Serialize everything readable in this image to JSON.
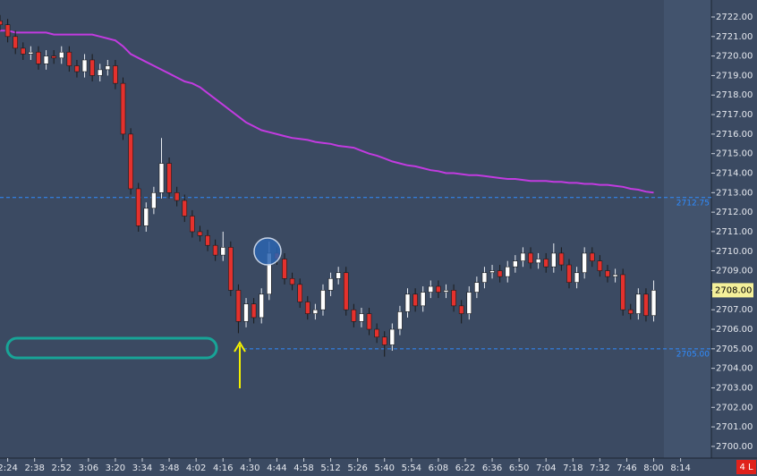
{
  "chart_data": {
    "type": "candlestick",
    "x": [
      "2:20",
      "2:24",
      "2:28",
      "2:32",
      "2:36",
      "2:40",
      "2:44",
      "2:48",
      "2:52",
      "2:56",
      "3:00",
      "3:04",
      "3:08",
      "3:12",
      "3:16",
      "3:20",
      "3:24",
      "3:28",
      "3:32",
      "3:36",
      "3:40",
      "3:44",
      "3:48",
      "3:52",
      "3:56",
      "4:00",
      "4:04",
      "4:08",
      "4:12",
      "4:16",
      "4:20",
      "4:24",
      "4:28",
      "4:32",
      "4:36",
      "4:40",
      "4:44",
      "4:48",
      "4:52",
      "4:56",
      "5:00",
      "5:04",
      "5:08",
      "5:12",
      "5:16",
      "5:20",
      "5:24",
      "5:28",
      "5:32",
      "5:36",
      "5:40",
      "5:44",
      "5:48",
      "5:52",
      "5:56",
      "6:00",
      "6:04",
      "6:08",
      "6:12",
      "6:16",
      "6:20",
      "6:24",
      "6:28",
      "6:32",
      "6:36",
      "6:40",
      "6:44",
      "6:48",
      "6:52",
      "6:56",
      "7:00",
      "7:04",
      "7:08",
      "7:12",
      "7:16",
      "7:20",
      "7:24",
      "7:28",
      "7:32",
      "7:36",
      "7:40",
      "7:44",
      "7:48",
      "7:52",
      "7:56",
      "8:00"
    ],
    "open": [
      2721.8,
      2721.6,
      2721.0,
      2720.4,
      2720.1,
      2720.2,
      2719.6,
      2720.0,
      2719.9,
      2720.2,
      2719.5,
      2719.2,
      2719.8,
      2719.0,
      2719.3,
      2719.5,
      2718.6,
      2716.0,
      2713.2,
      2711.3,
      2712.2,
      2713.0,
      2714.5,
      2713.0,
      2712.6,
      2711.8,
      2711.0,
      2710.8,
      2710.3,
      2709.8,
      2710.2,
      2708.0,
      2706.4,
      2707.3,
      2706.6,
      2707.8,
      2709.9,
      2709.6,
      2708.6,
      2708.3,
      2707.4,
      2706.8,
      2707.0,
      2708.0,
      2708.6,
      2708.9,
      2707.0,
      2706.4,
      2706.8,
      2706.0,
      2705.6,
      2705.2,
      2706.0,
      2706.9,
      2707.8,
      2707.2,
      2707.9,
      2708.2,
      2707.9,
      2708.0,
      2707.2,
      2706.8,
      2707.9,
      2708.4,
      2708.9,
      2709.0,
      2708.7,
      2709.2,
      2709.5,
      2709.9,
      2709.4,
      2709.6,
      2709.2,
      2709.9,
      2709.3,
      2708.4,
      2708.9,
      2709.9,
      2709.5,
      2709.0,
      2708.7,
      2708.8,
      2707.0,
      2706.8,
      2707.8,
      2706.7
    ],
    "high": [
      2722.1,
      2721.9,
      2721.3,
      2720.7,
      2720.5,
      2720.5,
      2720.3,
      2720.3,
      2720.5,
      2720.5,
      2719.8,
      2720.1,
      2720.1,
      2719.6,
      2719.8,
      2719.8,
      2718.9,
      2716.3,
      2713.5,
      2712.5,
      2713.3,
      2715.8,
      2714.8,
      2713.3,
      2712.9,
      2712.1,
      2711.3,
      2711.1,
      2710.6,
      2711.0,
      2710.5,
      2708.3,
      2707.6,
      2707.6,
      2708.1,
      2710.5,
      2710.2,
      2709.9,
      2708.9,
      2708.6,
      2707.7,
      2707.3,
      2708.3,
      2708.9,
      2709.2,
      2709.2,
      2707.3,
      2707.1,
      2707.1,
      2706.3,
      2705.9,
      2706.3,
      2707.2,
      2708.1,
      2708.1,
      2708.2,
      2708.5,
      2708.5,
      2708.3,
      2708.3,
      2707.5,
      2708.2,
      2708.7,
      2709.2,
      2709.3,
      2709.3,
      2709.5,
      2709.8,
      2710.2,
      2710.2,
      2709.9,
      2709.9,
      2710.4,
      2710.2,
      2709.6,
      2709.2,
      2710.2,
      2710.2,
      2709.8,
      2709.3,
      2709.1,
      2709.1,
      2707.3,
      2708.1,
      2708.1,
      2708.5
    ],
    "low": [
      2721.3,
      2720.7,
      2720.1,
      2719.8,
      2719.8,
      2719.3,
      2719.3,
      2719.6,
      2719.6,
      2719.2,
      2718.9,
      2718.9,
      2718.7,
      2718.7,
      2719.0,
      2718.3,
      2715.7,
      2712.9,
      2711.0,
      2711.0,
      2711.9,
      2712.7,
      2712.7,
      2712.3,
      2711.5,
      2710.7,
      2710.5,
      2710.0,
      2709.5,
      2709.5,
      2707.7,
      2705.8,
      2706.1,
      2706.3,
      2706.3,
      2707.5,
      2709.3,
      2708.3,
      2708.0,
      2707.1,
      2706.5,
      2706.5,
      2706.7,
      2707.7,
      2708.3,
      2706.7,
      2706.1,
      2706.1,
      2705.7,
      2705.3,
      2704.6,
      2704.9,
      2705.7,
      2706.6,
      2706.9,
      2706.9,
      2707.6,
      2707.6,
      2707.6,
      2706.9,
      2706.3,
      2706.5,
      2707.6,
      2708.1,
      2708.6,
      2708.4,
      2708.4,
      2708.9,
      2709.2,
      2709.1,
      2709.1,
      2708.9,
      2708.9,
      2709.0,
      2708.1,
      2708.1,
      2708.6,
      2709.2,
      2708.7,
      2708.4,
      2708.4,
      2706.7,
      2706.5,
      2706.5,
      2706.4,
      2706.4
    ],
    "close": [
      2721.6,
      2721.0,
      2720.4,
      2720.1,
      2720.2,
      2719.6,
      2720.0,
      2719.9,
      2720.2,
      2719.5,
      2719.2,
      2719.8,
      2719.0,
      2719.3,
      2719.5,
      2718.6,
      2716.0,
      2713.2,
      2711.3,
      2712.2,
      2713.0,
      2714.5,
      2713.0,
      2712.6,
      2711.8,
      2711.0,
      2710.8,
      2710.3,
      2709.8,
      2710.2,
      2708.0,
      2706.4,
      2707.3,
      2706.6,
      2707.8,
      2709.9,
      2709.6,
      2708.6,
      2708.3,
      2707.4,
      2706.8,
      2707.0,
      2708.0,
      2708.6,
      2708.9,
      2707.0,
      2706.4,
      2706.8,
      2706.0,
      2705.6,
      2705.2,
      2706.0,
      2706.9,
      2707.8,
      2707.2,
      2707.9,
      2708.2,
      2707.9,
      2708.0,
      2707.2,
      2706.8,
      2707.9,
      2708.4,
      2708.9,
      2709.0,
      2708.7,
      2709.2,
      2709.5,
      2709.9,
      2709.4,
      2709.6,
      2709.2,
      2709.9,
      2709.3,
      2708.4,
      2708.9,
      2709.9,
      2709.5,
      2709.0,
      2708.7,
      2708.8,
      2707.0,
      2706.8,
      2707.8,
      2706.7,
      2708.0
    ],
    "up_color": "#ffffff",
    "down_color": "#e4312d",
    "line": {
      "color": "#c23be0",
      "values": [
        2721.3,
        2721.3,
        2721.2,
        2721.2,
        2721.2,
        2721.2,
        2721.2,
        2721.1,
        2721.1,
        2721.1,
        2721.1,
        2721.1,
        2721.1,
        2721.0,
        2720.9,
        2720.8,
        2720.5,
        2720.1,
        2719.9,
        2719.7,
        2719.5,
        2719.3,
        2719.1,
        2718.9,
        2718.7,
        2718.6,
        2718.4,
        2718.1,
        2717.8,
        2717.5,
        2717.2,
        2716.9,
        2716.6,
        2716.4,
        2716.2,
        2716.1,
        2716.0,
        2715.9,
        2715.8,
        2715.75,
        2715.7,
        2715.6,
        2715.55,
        2715.5,
        2715.4,
        2715.35,
        2715.3,
        2715.15,
        2715.0,
        2714.9,
        2714.75,
        2714.6,
        2714.5,
        2714.4,
        2714.35,
        2714.25,
        2714.15,
        2714.1,
        2714.0,
        2714.0,
        2713.95,
        2713.9,
        2713.9,
        2713.85,
        2713.8,
        2713.75,
        2713.7,
        2713.7,
        2713.65,
        2713.6,
        2713.6,
        2713.6,
        2713.55,
        2713.55,
        2713.5,
        2713.5,
        2713.45,
        2713.45,
        2713.4,
        2713.4,
        2713.35,
        2713.3,
        2713.2,
        2713.15,
        2713.05,
        2713.0
      ]
    },
    "levels": [
      {
        "value": 2712.75,
        "label": "2712.75",
        "color": "#2f8cff"
      },
      {
        "value": 2705,
        "label": "2705.00",
        "color": "#2f8cff"
      }
    ],
    "last_price": {
      "value": 2708,
      "label": "2708.00",
      "color": "#f4f09a"
    },
    "badge": "4 L",
    "xlim": [
      "2:20",
      "8:30"
    ],
    "xticks": [
      "2:24",
      "2:38",
      "2:52",
      "3:06",
      "3:20",
      "3:34",
      "3:48",
      "4:02",
      "4:16",
      "4:30",
      "4:44",
      "4:58",
      "5:12",
      "5:26",
      "5:40",
      "5:54",
      "6:08",
      "6:22",
      "6:36",
      "6:50",
      "7:04",
      "7:18",
      "7:32",
      "7:46",
      "8:00",
      "8:14"
    ],
    "ylim": [
      2699.4,
      2722.87
    ],
    "yticks": [
      {
        "value": 2700,
        "label": "2700.00"
      },
      {
        "value": 2701,
        "label": "2701.00"
      },
      {
        "value": 2702,
        "label": "2702.00"
      },
      {
        "value": 2703,
        "label": "2703.00"
      },
      {
        "value": 2704,
        "label": "2704.00"
      },
      {
        "value": 2705,
        "label": "2705.00"
      },
      {
        "value": 2706,
        "label": "2706.00"
      },
      {
        "value": 2707,
        "label": "2707.00"
      },
      {
        "value": 2708,
        "label": "2708.00"
      },
      {
        "value": 2709,
        "label": "2709.00"
      },
      {
        "value": 2710,
        "label": "2710.00"
      },
      {
        "value": 2711,
        "label": "2711.00"
      },
      {
        "value": 2712,
        "label": "2712.00"
      },
      {
        "value": 2713,
        "label": "2713.00"
      },
      {
        "value": 2714,
        "label": "2714.00"
      },
      {
        "value": 2715,
        "label": "2715.00"
      },
      {
        "value": 2716,
        "label": "2716.00"
      },
      {
        "value": 2717,
        "label": "2717.00"
      },
      {
        "value": 2718,
        "label": "2718.00"
      },
      {
        "value": 2719,
        "label": "2719.00"
      },
      {
        "value": 2720,
        "label": "2720.00"
      },
      {
        "value": 2721,
        "label": "2721.00"
      },
      {
        "value": 2722,
        "label": "2722.00"
      }
    ]
  }
}
